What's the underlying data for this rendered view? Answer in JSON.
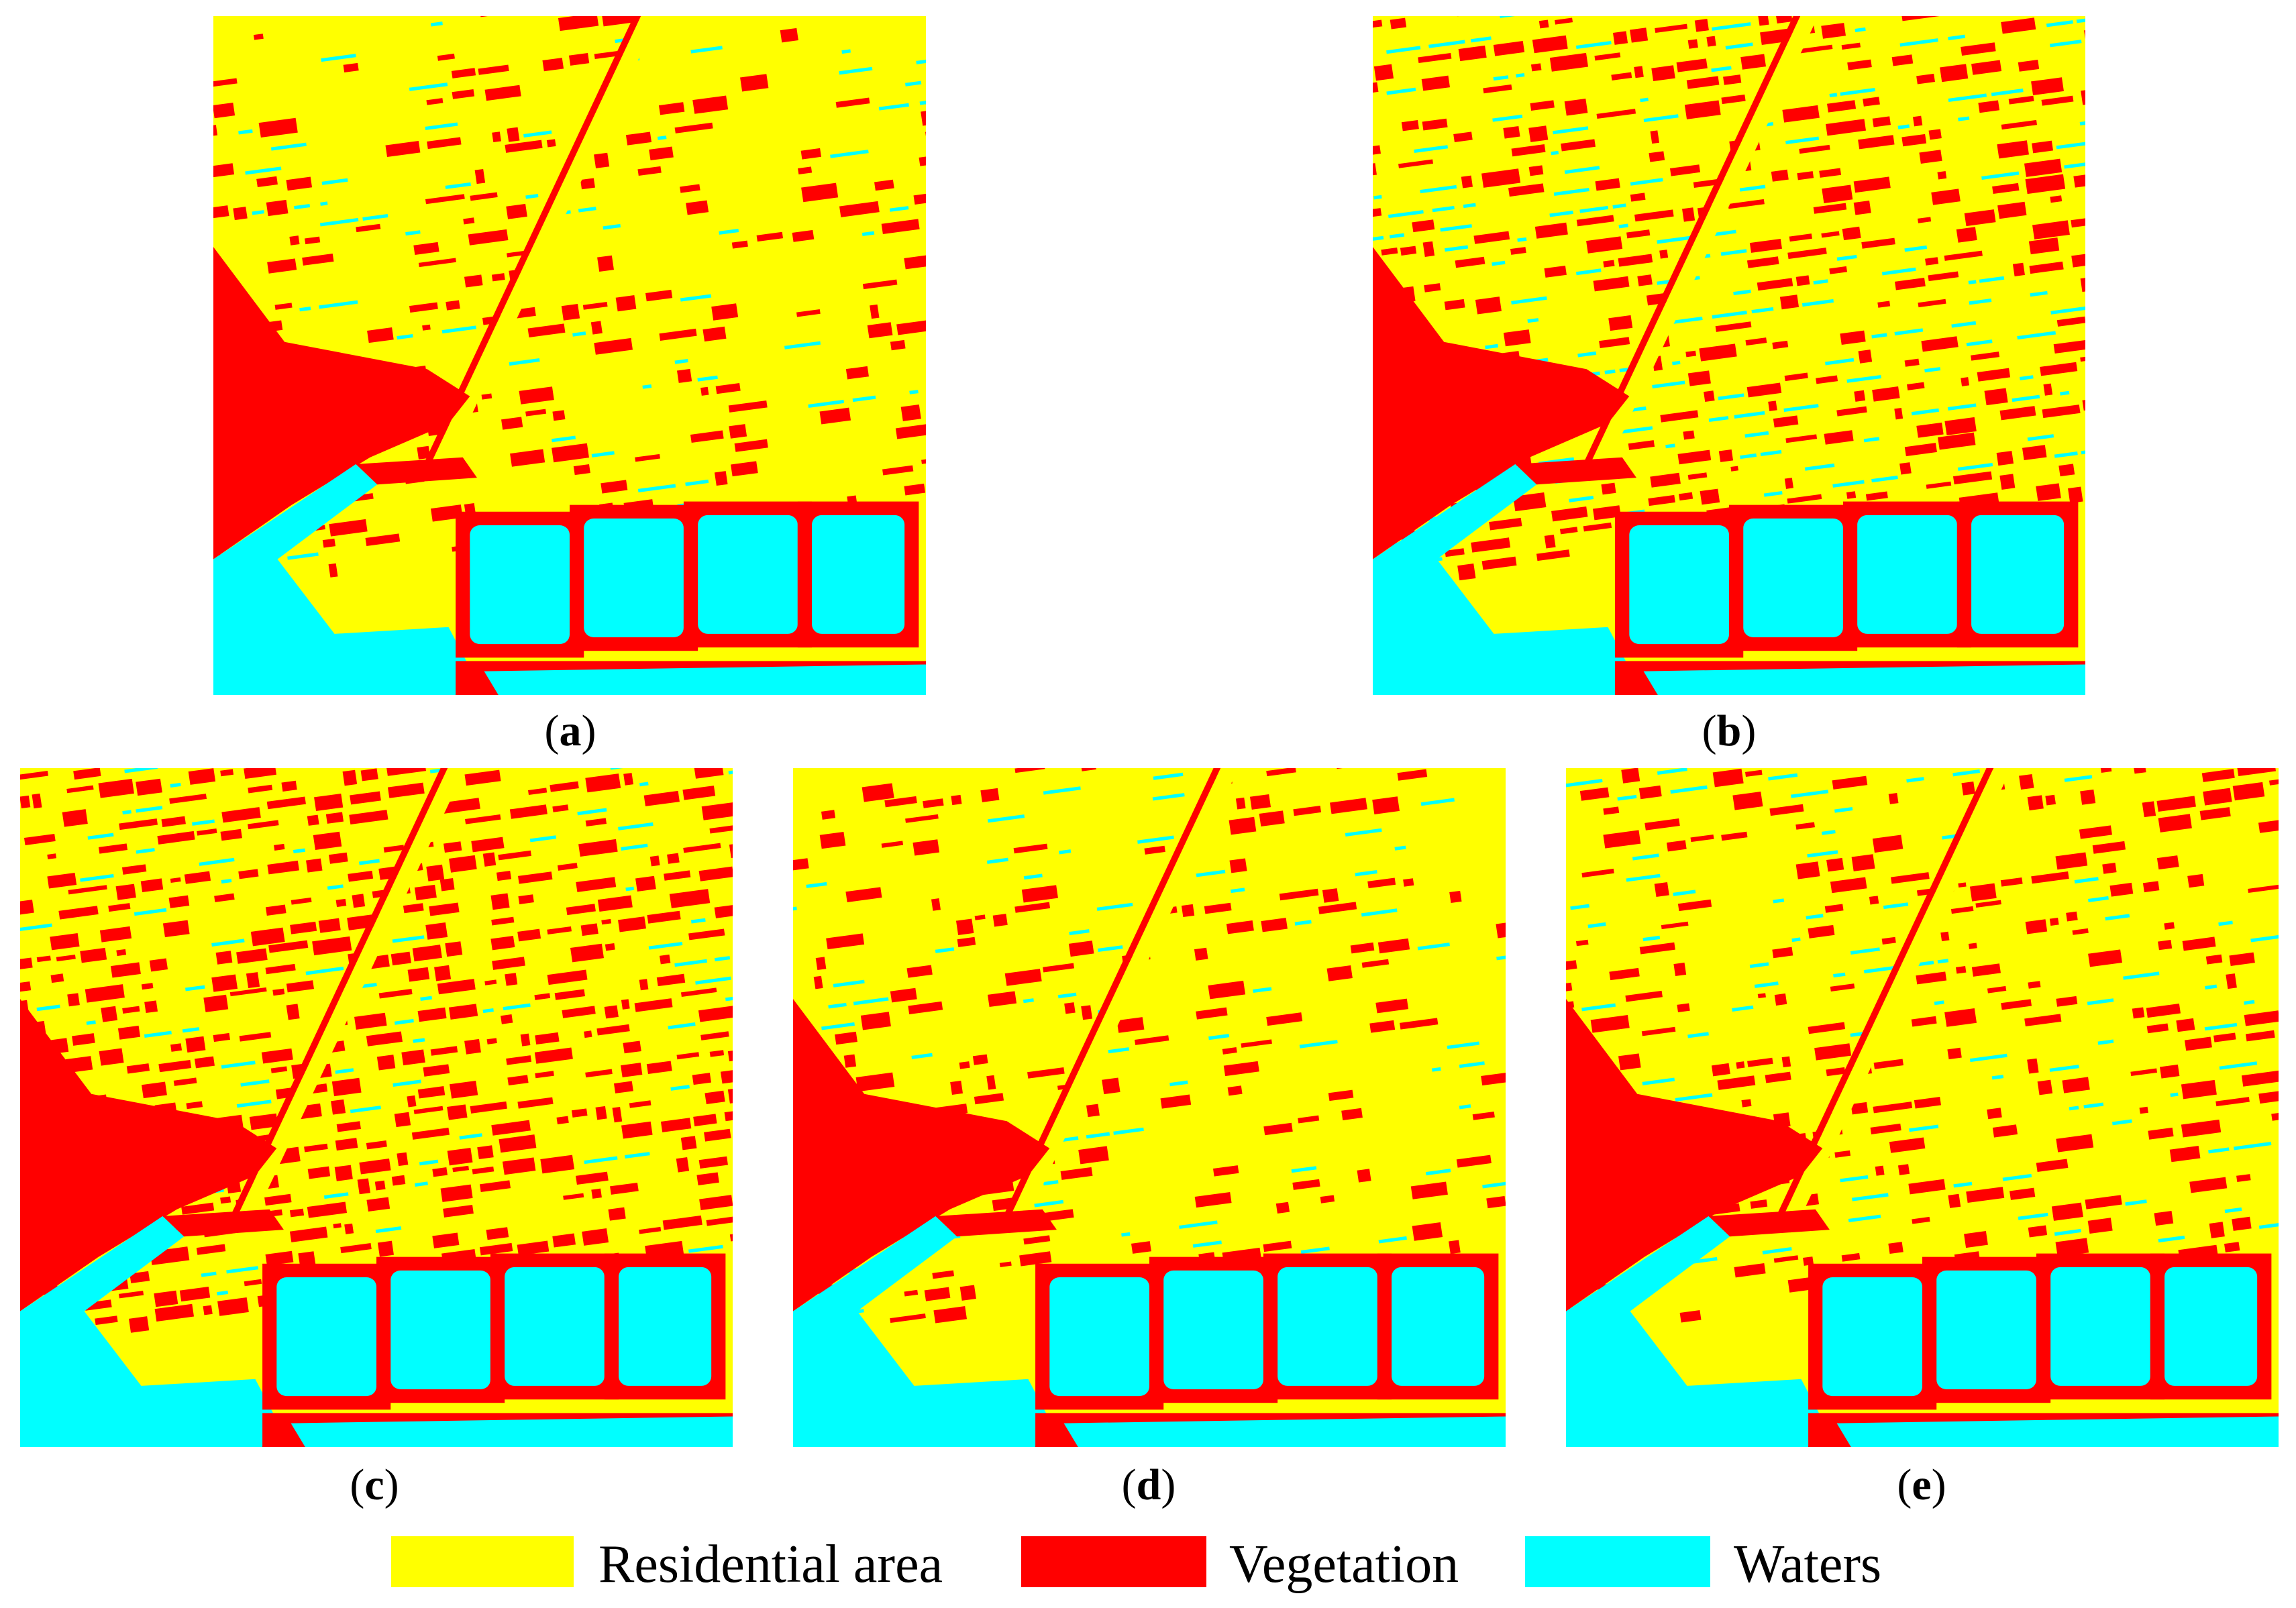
{
  "panels": [
    {
      "id": "a",
      "caption_open": "(",
      "caption_letter": "a",
      "caption_close": ")"
    },
    {
      "id": "b",
      "caption_open": "(",
      "caption_letter": "b",
      "caption_close": ")"
    },
    {
      "id": "c",
      "caption_open": "(",
      "caption_letter": "c",
      "caption_close": ")"
    },
    {
      "id": "d",
      "caption_open": "(",
      "caption_letter": "d",
      "caption_close": ")"
    },
    {
      "id": "e",
      "caption_open": "(",
      "caption_letter": "e",
      "caption_close": ")"
    }
  ],
  "legend": [
    {
      "label": "Residential area",
      "color": "#ffff00"
    },
    {
      "label": "Vegetation",
      "color": "#ff0000"
    },
    {
      "label": "Waters",
      "color": "#00ffff"
    }
  ],
  "colors": {
    "residential": "#ffff00",
    "vegetation": "#ff0000",
    "waters": "#00ffff"
  }
}
